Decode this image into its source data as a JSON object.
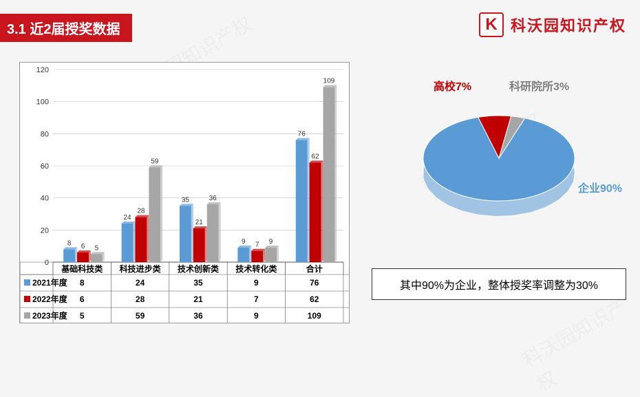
{
  "header": {
    "title": "3.1 近2届授奖数据"
  },
  "brand": {
    "letter": "K",
    "name": "科沃园知识产权"
  },
  "watermark_text": "科沃园知识产权",
  "bar_chart": {
    "type": "bar",
    "categories": [
      "基础科技类",
      "科技进步类",
      "技术创新类",
      "技术转化类",
      "合计"
    ],
    "series": [
      {
        "name": "2021年度",
        "color": "#5b9bd5",
        "values": [
          8,
          24,
          35,
          9,
          76
        ]
      },
      {
        "name": "2022年度",
        "color": "#c00000",
        "values": [
          6,
          28,
          21,
          7,
          62
        ]
      },
      {
        "name": "2023年度",
        "color": "#a6a6a6",
        "values": [
          5,
          59,
          36,
          9,
          109
        ]
      }
    ],
    "ylim": [
      0,
      120
    ],
    "ytick_step": 20,
    "gridline_color": "#bfbfbf",
    "axis_color": "#555",
    "background": "#ffffff",
    "label_fontsize": 11
  },
  "pie_chart": {
    "type": "pie_3d",
    "slices": [
      {
        "label": "企业90%",
        "value": 90,
        "color": "#5b9bd5",
        "label_color": "#5b9bd5"
      },
      {
        "label": "高校7%",
        "value": 7,
        "color": "#c00000",
        "label_color": "#c00000"
      },
      {
        "label": "科研院所3%",
        "value": 3,
        "color": "#a6a6a6",
        "label_color": "#7f7f7f"
      }
    ],
    "label_fontsize": 16
  },
  "note": {
    "text": "其中90%为企业，整体授奖率调整为30%"
  }
}
